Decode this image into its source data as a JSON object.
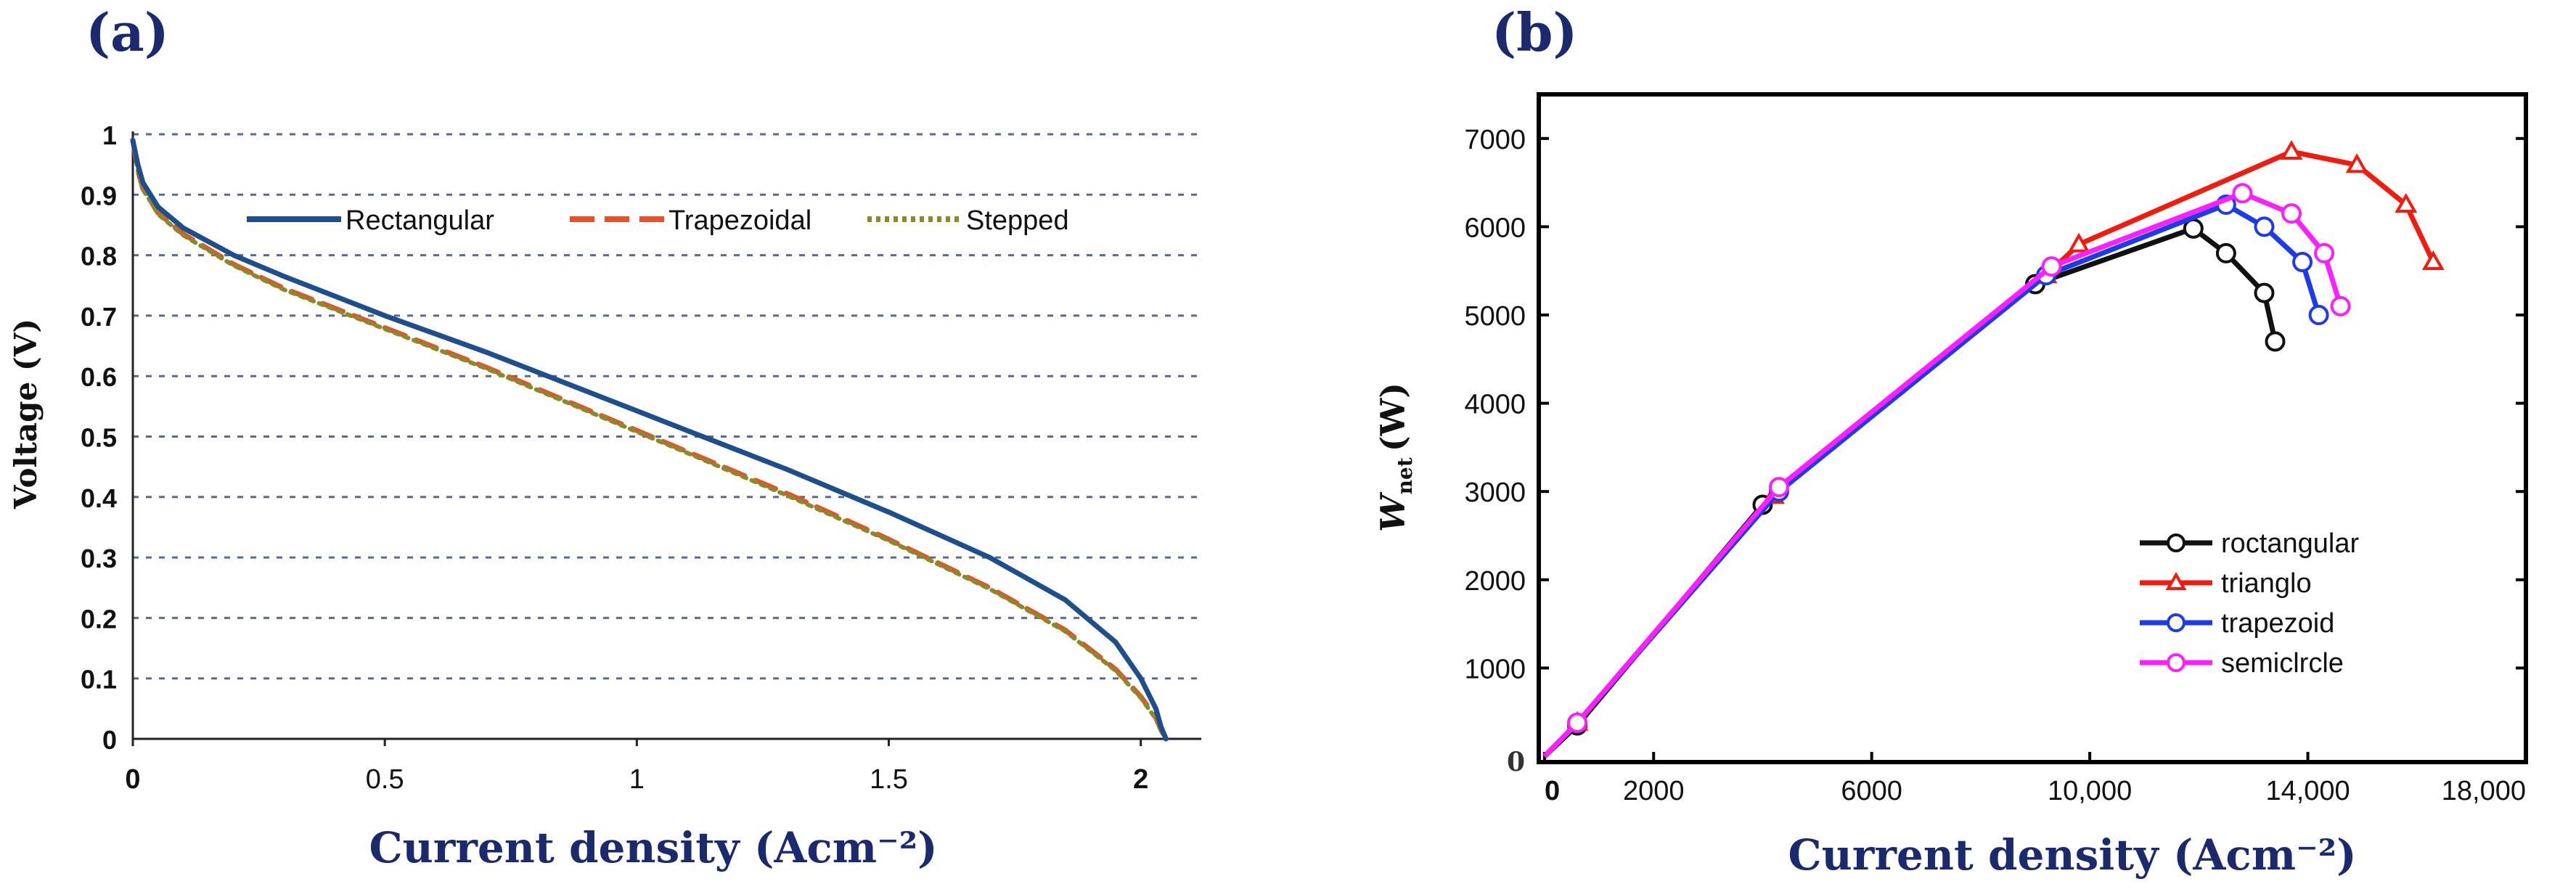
{
  "chart_data": [
    {
      "panel_label": "(a)",
      "type": "line",
      "title": "",
      "xlabel": "Current density (Acm⁻²)",
      "ylabel": "Voltage (V)",
      "xlim": [
        0,
        2.12
      ],
      "ylim": [
        0,
        1
      ],
      "xticks": [
        0,
        0.5,
        1,
        1.5,
        2
      ],
      "xtick_labels": [
        "0",
        "0.5",
        "1",
        "1.5",
        "2"
      ],
      "yticks": [
        0,
        0.1,
        0.2,
        0.3,
        0.4,
        0.5,
        0.6,
        0.7,
        0.8,
        0.9,
        1
      ],
      "ytick_labels": [
        "0",
        "0.1",
        "0.2",
        "0.3",
        "0.4",
        "0.5",
        "0.6",
        "0.7",
        "0.8",
        "0.9",
        "1"
      ],
      "grid": true,
      "legend_position": "top",
      "series": [
        {
          "name": "Rectangular",
          "color": "#1f4e8c",
          "style": "solid",
          "x": [
            0,
            0.01,
            0.02,
            0.05,
            0.1,
            0.2,
            0.3,
            0.5,
            0.7,
            0.9,
            1.1,
            1.3,
            1.5,
            1.7,
            1.85,
            1.95,
            2.0,
            2.03,
            2.04,
            2.05
          ],
          "y": [
            0.99,
            0.95,
            0.92,
            0.88,
            0.845,
            0.8,
            0.765,
            0.7,
            0.64,
            0.575,
            0.51,
            0.445,
            0.375,
            0.3,
            0.23,
            0.16,
            0.1,
            0.05,
            0.02,
            0.0
          ]
        },
        {
          "name": "Trapezoidal",
          "color": "#e8502a",
          "style": "dashed",
          "x": [
            0,
            0.01,
            0.02,
            0.05,
            0.1,
            0.2,
            0.3,
            0.5,
            0.7,
            0.9,
            1.1,
            1.3,
            1.5,
            1.7,
            1.85,
            1.95,
            2.0,
            2.03,
            2.04,
            2.05
          ],
          "y": [
            0.99,
            0.94,
            0.91,
            0.87,
            0.835,
            0.785,
            0.745,
            0.68,
            0.615,
            0.545,
            0.475,
            0.405,
            0.33,
            0.25,
            0.18,
            0.115,
            0.07,
            0.035,
            0.015,
            0.0
          ]
        },
        {
          "name": "Stepped",
          "color": "#8a8a2a",
          "style": "dotted",
          "x": [
            0,
            0.01,
            0.02,
            0.05,
            0.1,
            0.2,
            0.3,
            0.5,
            0.7,
            0.9,
            1.1,
            1.3,
            1.5,
            1.7,
            1.85,
            1.95,
            2.0,
            2.03,
            2.04,
            2.05
          ],
          "y": [
            0.99,
            0.94,
            0.91,
            0.868,
            0.833,
            0.783,
            0.743,
            0.678,
            0.613,
            0.543,
            0.473,
            0.402,
            0.328,
            0.248,
            0.178,
            0.113,
            0.068,
            0.033,
            0.014,
            0.0
          ]
        }
      ]
    },
    {
      "panel_label": "(b)",
      "type": "line",
      "title": "",
      "xlabel": "Current density (Acm⁻²)",
      "ylabel": "W_net (W)",
      "ylabel_main": "W",
      "ylabel_sub": "net",
      "ylabel_unit": "(W)",
      "xlim": [
        0,
        18000
      ],
      "ylim": [
        0,
        7500
      ],
      "xticks": [
        0,
        2000,
        6000,
        10000,
        14000,
        18000
      ],
      "xtick_labels": [
        "0",
        "2000",
        "6000",
        "10,000",
        "14,000",
        "18,000"
      ],
      "yticks": [
        1000,
        2000,
        3000,
        4000,
        5000,
        6000,
        7000
      ],
      "ytick_labels": [
        "1000",
        "2000",
        "3000",
        "4000",
        "5000",
        "6000",
        "7000"
      ],
      "origin_label": "0",
      "grid": false,
      "legend_position": "bottom-right",
      "series": [
        {
          "name": "roctangular",
          "color": "#111111",
          "marker": "circle",
          "x": [
            0,
            600,
            4000,
            9000,
            11900,
            12500,
            13200,
            13400
          ],
          "y": [
            0,
            350,
            2850,
            5350,
            5980,
            5700,
            5250,
            4700
          ]
        },
        {
          "name": "trianglo",
          "color": "#f01c10",
          "marker": "triangle",
          "x": [
            0,
            600,
            4200,
            9200,
            9800,
            13700,
            14900,
            15800,
            16300
          ],
          "y": [
            0,
            380,
            2950,
            5450,
            5800,
            6850,
            6700,
            6250,
            5600
          ]
        },
        {
          "name": "trapezoid",
          "color": "#1d3ce8",
          "marker": "circle",
          "x": [
            0,
            600,
            4300,
            9200,
            12500,
            13200,
            13900,
            14200
          ],
          "y": [
            0,
            380,
            3000,
            5450,
            6250,
            6000,
            5600,
            5000
          ]
        },
        {
          "name": "semiclrcle",
          "color": "#ff20ff",
          "marker": "circle",
          "x": [
            0,
            600,
            4300,
            9300,
            12800,
            13700,
            14300,
            14600
          ],
          "y": [
            0,
            380,
            3050,
            5550,
            6380,
            6150,
            5700,
            5100
          ]
        }
      ]
    }
  ]
}
